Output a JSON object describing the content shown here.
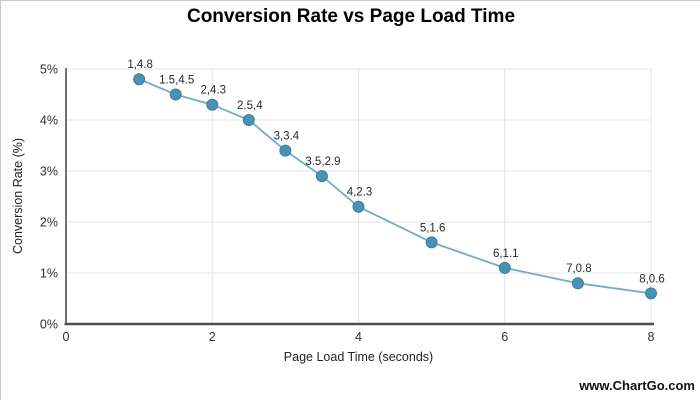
{
  "frame": {
    "border_color": "#c9c9c9",
    "background": "#ffffff"
  },
  "watermark": {
    "text": "www.ChartGo.com"
  },
  "chart_data": {
    "type": "line",
    "title": "Conversion Rate vs Page Load Time",
    "xlabel": "Page Load Time (seconds)",
    "ylabel": "Conversion Rate (%)",
    "x": [
      1,
      1.5,
      2,
      2.5,
      3,
      3.5,
      4,
      5,
      6,
      7,
      8
    ],
    "y": [
      4.8,
      4.5,
      4.3,
      4,
      3.4,
      2.9,
      2.3,
      1.6,
      1.1,
      0.8,
      0.6
    ],
    "point_labels": [
      "1,4.8",
      "1.5,4.5",
      "2,4.3",
      "2.5,4",
      "3,3.4",
      "3.5,2.9",
      "4,2.3",
      "5,1.6",
      "6,1.1",
      "7,0.8",
      "8,0.6"
    ],
    "xlim": [
      0,
      8
    ],
    "ylim": [
      0,
      5
    ],
    "x_ticks": [
      {
        "value": 0,
        "label": "0"
      },
      {
        "value": 2,
        "label": "2"
      },
      {
        "value": 4,
        "label": "4"
      },
      {
        "value": 6,
        "label": "6"
      },
      {
        "value": 8,
        "label": "8"
      }
    ],
    "y_ticks": [
      {
        "value": 0,
        "label": "0%"
      },
      {
        "value": 1,
        "label": "1%"
      },
      {
        "value": 2,
        "label": "2%"
      },
      {
        "value": 3,
        "label": "3%"
      },
      {
        "value": 4,
        "label": "4%"
      },
      {
        "value": 5,
        "label": "5%"
      }
    ],
    "grid": true,
    "legend": "none",
    "colors": {
      "marker": "#4a92b4",
      "marker_edge": "#39809f",
      "line": "#74abc7",
      "grid": "#e4e4e8",
      "axis": "#4f4f52",
      "tick_text": "#303030",
      "point_label_text": "#2a2a2a",
      "title_text": "#000000"
    }
  }
}
